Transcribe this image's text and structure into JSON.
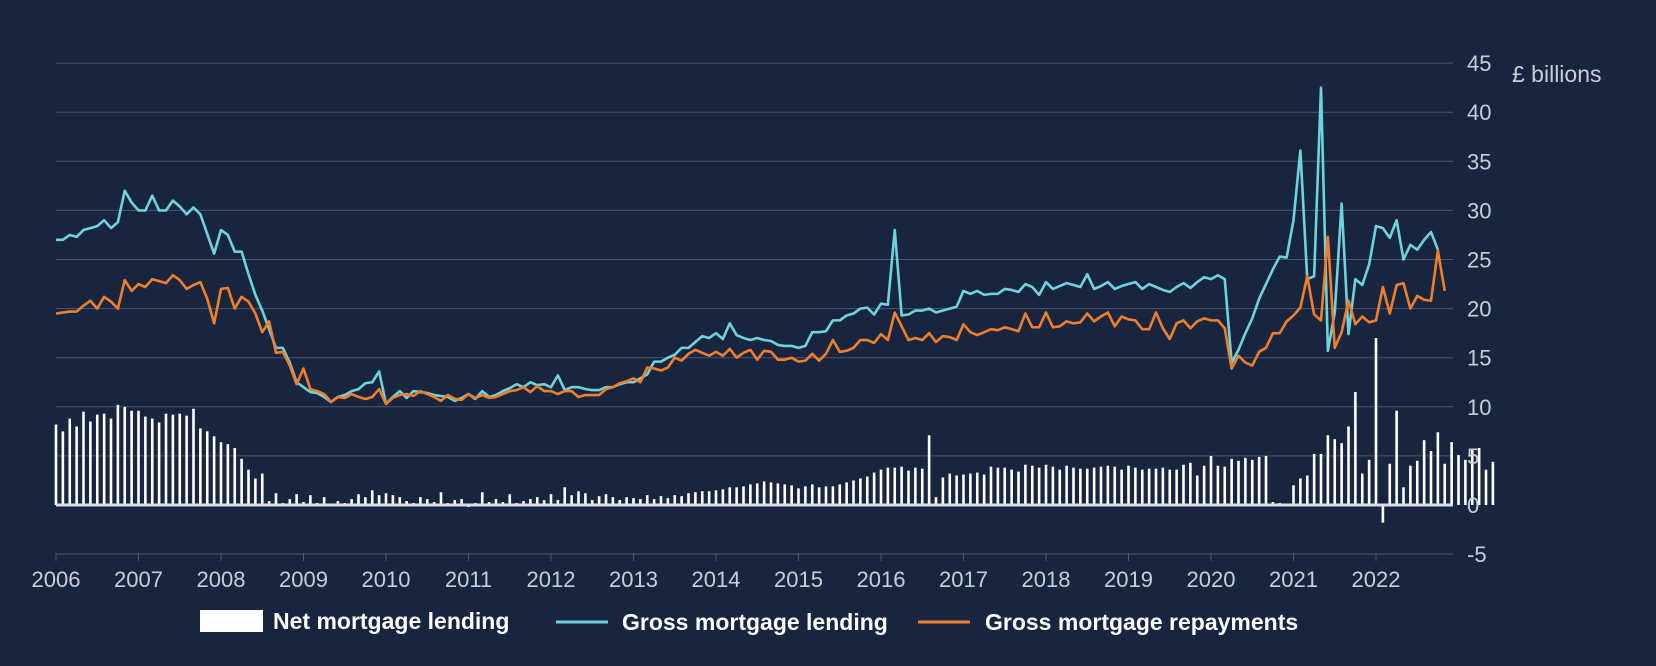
{
  "chart_data": {
    "type": "bar+line",
    "unit": "£ billions",
    "x_start": "2006-01",
    "x_ticks": [
      "2006",
      "2007",
      "2008",
      "2009",
      "2010",
      "2011",
      "2012",
      "2013",
      "2014",
      "2015",
      "2016",
      "2017",
      "2018",
      "2019",
      "2020",
      "2021",
      "2022"
    ],
    "ylim": [
      -5,
      45
    ],
    "y_ticks": [
      -5,
      0,
      5,
      10,
      15,
      20,
      25,
      30,
      35,
      40,
      45
    ],
    "grid": true,
    "legend_position": "bottom-center",
    "colors": {
      "background": "#18253f",
      "net": "#ffffff",
      "gross_lending": "#6fd3dc",
      "gross_repayments": "#f07f2c",
      "grid": "#4a5672",
      "zero_line": "#d8dce4",
      "text": "#c9ced8"
    },
    "series": [
      {
        "name": "Net mortgage lending",
        "kind": "bar",
        "values": [
          8.2,
          7.5,
          8.8,
          8.0,
          9.5,
          8.5,
          9.2,
          9.3,
          8.8,
          10.2,
          10.0,
          9.6,
          9.6,
          9.0,
          8.8,
          8.4,
          9.3,
          9.2,
          9.3,
          9.1,
          9.8,
          7.8,
          7.5,
          7.0,
          6.4,
          6.2,
          5.8,
          4.7,
          3.6,
          2.7,
          3.2,
          0.4,
          1.2,
          0.2,
          0.6,
          1.1,
          0.3,
          1.0,
          0.2,
          0.8,
          0.1,
          0.4,
          0.2,
          0.6,
          1.1,
          0.8,
          1.5,
          1.0,
          1.2,
          1.0,
          0.8,
          0.4,
          0.2,
          0.8,
          0.6,
          0.3,
          1.3,
          0.2,
          0.5,
          0.6,
          -0.2,
          0.2,
          1.3,
          0.3,
          0.6,
          0.3,
          1.1,
          0.2,
          0.4,
          0.6,
          0.8,
          0.5,
          1.1,
          0.5,
          1.8,
          1.0,
          1.4,
          1.2,
          0.5,
          0.9,
          1.1,
          0.8,
          0.5,
          0.8,
          0.7,
          0.6,
          1.0,
          0.6,
          0.9,
          0.7,
          1.0,
          0.9,
          1.2,
          1.3,
          1.4,
          1.4,
          1.5,
          1.6,
          1.8,
          1.8,
          1.9,
          2.1,
          2.2,
          2.4,
          2.3,
          2.2,
          2.1,
          2.0,
          1.7,
          1.9,
          2.1,
          1.8,
          1.9,
          1.9,
          2.1,
          2.3,
          2.5,
          2.7,
          2.9,
          3.3,
          3.6,
          3.8,
          3.8,
          3.9,
          3.5,
          3.8,
          3.7,
          7.1,
          0.8,
          2.8,
          3.2,
          3.0,
          3.1,
          3.2,
          3.3,
          3.1,
          3.9,
          3.8,
          3.8,
          3.6,
          3.4,
          4.1,
          4.0,
          3.8,
          4.1,
          3.9,
          3.6,
          4.0,
          3.8,
          3.7,
          3.7,
          3.8,
          3.9,
          4.0,
          3.9,
          3.6,
          4.0,
          3.8,
          3.6,
          3.7,
          3.7,
          3.8,
          3.6,
          3.6,
          4.1,
          4.3,
          3.0,
          4.0,
          5.0,
          4.0,
          3.9,
          4.7,
          4.5,
          4.8,
          4.6,
          4.9,
          5.0,
          0.3,
          0.2,
          0.1,
          2.0,
          2.7,
          3.0,
          5.2,
          5.2,
          7.1,
          6.7,
          6.3,
          8.0,
          11.5,
          3.2,
          4.6,
          17.0,
          -1.8,
          4.2,
          9.6,
          1.8,
          4.0,
          4.5,
          6.6,
          5.5,
          7.4,
          4.2,
          6.4,
          5.1,
          4.6,
          5.6,
          5.8,
          3.6,
          4.4
        ]
      },
      {
        "name": "Gross mortgage lending",
        "kind": "line",
        "values": [
          27.0,
          27.0,
          27.5,
          27.3,
          28.0,
          28.2,
          28.4,
          29.0,
          28.2,
          28.8,
          32.0,
          30.8,
          30.0,
          30.0,
          31.5,
          30.0,
          30.0,
          31.0,
          30.4,
          29.6,
          30.3,
          29.6,
          27.6,
          25.6,
          28.0,
          27.5,
          25.8,
          25.8,
          23.5,
          21.4,
          19.8,
          17.9,
          16.0,
          16.0,
          14.5,
          12.5,
          12.0,
          11.5,
          11.4,
          11.0,
          10.5,
          11.0,
          11.2,
          11.6,
          11.8,
          12.4,
          12.5,
          13.6,
          10.3,
          11.0,
          11.6,
          10.9,
          11.6,
          11.5,
          11.4,
          11.2,
          11.1,
          11.0,
          10.6,
          10.9,
          11.3,
          10.8,
          11.6,
          11.0,
          11.2,
          11.6,
          11.9,
          12.3,
          12.0,
          12.5,
          12.2,
          12.3,
          12.0,
          13.2,
          11.7,
          12.0,
          12.0,
          11.8,
          11.7,
          11.7,
          12.0,
          12.0,
          12.3,
          12.5,
          12.5,
          12.9,
          13.3,
          14.6,
          14.6,
          15.0,
          15.3,
          16.0,
          16.0,
          16.6,
          17.2,
          17.0,
          17.5,
          16.9,
          18.5,
          17.3,
          17.0,
          16.8,
          17.0,
          16.8,
          16.7,
          16.3,
          16.2,
          16.2,
          16.0,
          16.2,
          17.6,
          17.6,
          17.7,
          18.8,
          18.8,
          19.3,
          19.5,
          20.0,
          20.1,
          19.4,
          20.5,
          20.4,
          28.0,
          19.3,
          19.4,
          19.8,
          19.8,
          20.0,
          19.6,
          19.8,
          20.0,
          20.2,
          21.8,
          21.5,
          21.8,
          21.4,
          21.5,
          21.5,
          22.0,
          21.9,
          21.7,
          22.5,
          22.2,
          21.4,
          22.7,
          22.0,
          22.3,
          22.6,
          22.4,
          22.2,
          23.5,
          22.0,
          22.3,
          22.7,
          22.0,
          22.3,
          22.5,
          22.7,
          22.0,
          22.5,
          22.2,
          21.9,
          21.7,
          22.2,
          22.6,
          22.1,
          22.7,
          23.2,
          23.0,
          23.4,
          23.0,
          14.5,
          15.8,
          17.5,
          19.0,
          21.0,
          22.5,
          24.0,
          25.3,
          25.2,
          29.0,
          36.1,
          23.0,
          23.3,
          42.5,
          15.7,
          19.6,
          30.7,
          17.4,
          23.0,
          22.4,
          24.5,
          28.4,
          28.2,
          27.2,
          29.0,
          25.0,
          26.5,
          26.0,
          27.0,
          27.8,
          26.0
        ]
      },
      {
        "name": "Gross mortgage repayments",
        "kind": "line",
        "values": [
          19.5,
          19.6,
          19.7,
          19.7,
          20.3,
          20.8,
          20.0,
          21.2,
          20.7,
          20.0,
          22.9,
          21.8,
          22.5,
          22.2,
          23.0,
          22.8,
          22.6,
          23.4,
          22.9,
          22.0,
          22.4,
          22.7,
          21.0,
          18.5,
          22.0,
          22.1,
          20.0,
          21.2,
          20.7,
          19.5,
          17.6,
          18.7,
          15.5,
          15.6,
          14.2,
          12.3,
          13.9,
          11.8,
          11.6,
          11.3,
          10.5,
          11.0,
          10.9,
          11.3,
          11.0,
          10.8,
          11.0,
          11.8,
          10.3,
          10.9,
          11.2,
          11.3,
          11.1,
          11.6,
          11.3,
          11.0,
          10.6,
          11.2,
          10.8,
          10.7,
          11.3,
          10.9,
          11.2,
          10.9,
          11.0,
          11.3,
          11.6,
          11.7,
          12.0,
          11.5,
          12.1,
          11.6,
          11.6,
          11.3,
          11.6,
          11.6,
          11.0,
          11.2,
          11.2,
          11.2,
          11.8,
          12.0,
          12.4,
          12.6,
          12.9,
          12.5,
          14.0,
          13.9,
          13.7,
          14.0,
          15.0,
          14.7,
          15.4,
          15.8,
          15.5,
          15.2,
          15.6,
          15.2,
          15.9,
          15.0,
          15.5,
          15.8,
          14.8,
          15.7,
          15.6,
          14.8,
          14.8,
          15.0,
          14.6,
          14.7,
          15.4,
          14.7,
          15.4,
          16.8,
          15.6,
          15.7,
          16.0,
          16.8,
          16.8,
          16.5,
          17.4,
          16.8,
          19.6,
          18.2,
          16.8,
          17.0,
          16.8,
          17.5,
          16.6,
          17.2,
          17.1,
          16.8,
          18.4,
          17.6,
          17.3,
          17.6,
          17.9,
          17.8,
          18.1,
          17.9,
          17.7,
          19.5,
          18.1,
          18.1,
          19.6,
          18.1,
          18.2,
          18.7,
          18.5,
          18.6,
          19.5,
          18.7,
          19.2,
          19.6,
          18.2,
          19.2,
          18.9,
          18.8,
          17.9,
          17.9,
          19.6,
          18.0,
          16.9,
          18.5,
          18.8,
          18.0,
          18.7,
          19.0,
          18.8,
          18.8,
          18.0,
          13.9,
          15.2,
          14.5,
          14.2,
          15.6,
          16.0,
          17.5,
          17.5,
          18.7,
          19.3,
          20.1,
          23.3,
          19.4,
          18.8,
          27.3,
          16.0,
          17.6,
          20.8,
          18.4,
          19.2,
          18.6,
          18.8,
          22.2,
          19.5,
          22.4,
          22.6,
          20.0,
          21.3,
          20.9,
          20.8,
          25.9,
          21.8
        ]
      }
    ]
  }
}
